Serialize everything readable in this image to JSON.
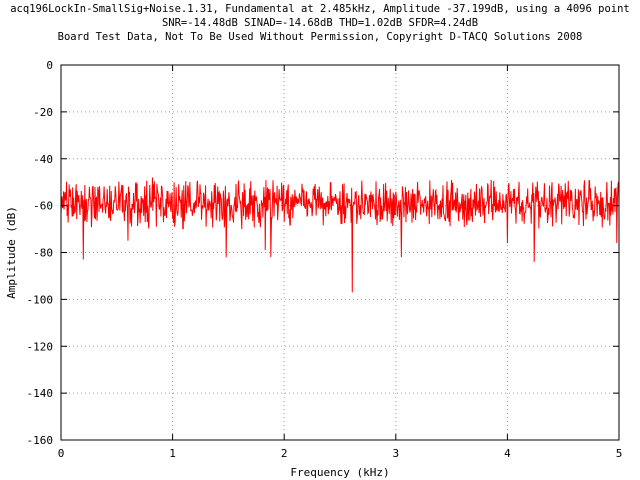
{
  "chart_data": {
    "type": "line",
    "title_lines": [
      "acq196LockIn-SmallSig+Noise.1.31, Fundamental at 2.485kHz, Amplitude -37.199dB, using a 4096 point",
      "SNR=-14.48dB SINAD=-14.68dB THD=1.02dB SFDR=4.24dB",
      "Board Test Data, Not To Be Used Without Permission, Copyright D-TACQ Solutions 2008"
    ],
    "xlabel": "Frequency (kHz)",
    "ylabel": "Amplitude (dB)",
    "xlim": [
      0,
      5
    ],
    "ylim": [
      -160,
      0
    ],
    "x_ticks": [
      "0",
      "1",
      "2",
      "3",
      "4",
      "5"
    ],
    "y_ticks": [
      "0",
      "-20",
      "-40",
      "-60",
      "-80",
      "-100",
      "-120",
      "-140",
      "-160"
    ],
    "grid": true,
    "series": [
      {
        "color": "#ff0000",
        "noise_floor_center": -59,
        "noise_floor_range": [
          -70,
          -49
        ],
        "x": [
          0.0,
          0.17,
          0.2,
          0.33,
          0.55,
          0.6,
          0.82,
          1.05,
          1.22,
          1.48,
          1.62,
          1.79,
          1.83,
          1.88,
          2.05,
          2.23,
          2.3,
          2.48,
          2.61,
          2.76,
          2.9,
          3.05,
          3.38,
          3.5,
          3.82,
          4.0,
          4.1,
          4.24,
          4.5,
          4.7,
          4.98
        ],
        "y": [
          -64,
          -64,
          -83,
          -52,
          -63,
          -75,
          -48,
          -62,
          -50,
          -82,
          -70,
          -65,
          -79,
          -82,
          -68,
          -60,
          -53,
          -64,
          -97,
          -58,
          -60,
          -82,
          -60,
          -49,
          -58,
          -76,
          -54,
          -84,
          -58,
          -60,
          -76
        ]
      }
    ]
  }
}
